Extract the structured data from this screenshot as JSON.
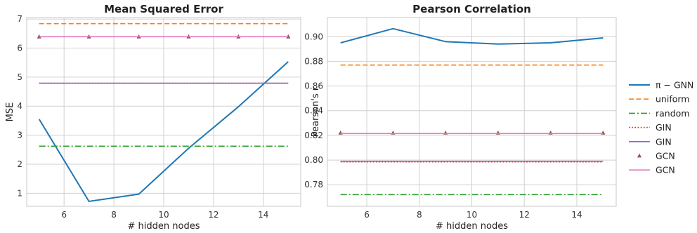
{
  "chart_data": [
    {
      "type": "line",
      "title": "Mean Squared Error",
      "xlabel": "# hidden nodes",
      "ylabel": "MSE",
      "xlim": [
        4.5,
        15.5
      ],
      "ylim": [
        0.55,
        7.05
      ],
      "xticks": [
        6,
        8,
        10,
        12,
        14
      ],
      "yticks": [
        1,
        2,
        3,
        4,
        5,
        6,
        7
      ],
      "grid": true,
      "series": [
        {
          "name": "π − GNN",
          "style": "solid",
          "color": "#1f77b4",
          "x": [
            5,
            7,
            9,
            11,
            13,
            15
          ],
          "y": [
            3.55,
            0.72,
            0.97,
            2.55,
            3.98,
            5.53
          ]
        },
        {
          "name": "uniform",
          "style": "dashed",
          "color": "#ff7f0e",
          "x": [
            5,
            15
          ],
          "y": [
            6.84,
            6.84
          ]
        },
        {
          "name": "random",
          "style": "dashdot",
          "color": "#2ca02c",
          "x": [
            5,
            15
          ],
          "y": [
            2.62,
            2.62
          ]
        },
        {
          "name": "GIN",
          "style": "dotted",
          "color": "#d62728",
          "x": [
            5,
            15
          ],
          "y": [
            4.79,
            4.79
          ]
        },
        {
          "name": "GIN",
          "style": "solid",
          "color": "#9467bd",
          "x": [
            5,
            15
          ],
          "y": [
            4.79,
            4.79
          ]
        },
        {
          "name": "GCN",
          "style": "markers",
          "color": "#8c564b",
          "x": [
            5,
            7,
            9,
            11,
            13,
            15
          ],
          "y": [
            6.39,
            6.39,
            6.39,
            6.39,
            6.39,
            6.39
          ]
        },
        {
          "name": "GCN",
          "style": "solid",
          "color": "#e377c2",
          "x": [
            5,
            15
          ],
          "y": [
            6.39,
            6.39
          ]
        }
      ]
    },
    {
      "type": "line",
      "title": "Pearson Correlation",
      "xlabel": "# hidden nodes",
      "ylabel": "Pearson's r",
      "xlim": [
        4.5,
        15.5
      ],
      "ylim": [
        0.7625,
        0.9155
      ],
      "xticks": [
        6,
        8,
        10,
        12,
        14
      ],
      "yticks": [
        0.78,
        0.8,
        0.82,
        0.84,
        0.86,
        0.88,
        0.9
      ],
      "ytick_labels": [
        "0.78",
        "0.80",
        "0.82",
        "0.84",
        "0.86",
        "0.88",
        "0.90"
      ],
      "grid": true,
      "series": [
        {
          "name": "π − GNN",
          "style": "solid",
          "color": "#1f77b4",
          "x": [
            5,
            7,
            9,
            11,
            13,
            15
          ],
          "y": [
            0.895,
            0.9065,
            0.896,
            0.894,
            0.895,
            0.899
          ]
        },
        {
          "name": "uniform",
          "style": "dashed",
          "color": "#ff7f0e",
          "x": [
            5,
            15
          ],
          "y": [
            0.877,
            0.877
          ]
        },
        {
          "name": "random",
          "style": "dashdot",
          "color": "#2ca02c",
          "x": [
            5,
            15
          ],
          "y": [
            0.772,
            0.772
          ]
        },
        {
          "name": "GIN",
          "style": "dotted",
          "color": "#d62728",
          "x": [
            5,
            15
          ],
          "y": [
            0.7985,
            0.7985
          ]
        },
        {
          "name": "GIN",
          "style": "solid",
          "color": "#9467bd",
          "x": [
            5,
            15
          ],
          "y": [
            0.799,
            0.799
          ]
        },
        {
          "name": "GCN",
          "style": "markers",
          "color": "#8c564b",
          "x": [
            5,
            7,
            9,
            11,
            13,
            15
          ],
          "y": [
            0.822,
            0.822,
            0.822,
            0.822,
            0.822,
            0.822
          ]
        },
        {
          "name": "GCN",
          "style": "solid",
          "color": "#e377c2",
          "x": [
            5,
            15
          ],
          "y": [
            0.8215,
            0.8215
          ]
        }
      ]
    }
  ],
  "legend": {
    "placement": "right",
    "entries": [
      {
        "label": "π − GNN",
        "style": "solid",
        "color": "#1f77b4"
      },
      {
        "label": "uniform",
        "style": "dashed",
        "color": "#ff7f0e"
      },
      {
        "label": "random",
        "style": "dashdot",
        "color": "#2ca02c"
      },
      {
        "label": "GIN",
        "style": "dotted",
        "color": "#d62728"
      },
      {
        "label": "GIN",
        "style": "solid",
        "color": "#9467bd"
      },
      {
        "label": "GCN",
        "style": "markers",
        "color": "#8c564b"
      },
      {
        "label": "GCN",
        "style": "solid",
        "color": "#e377c2"
      }
    ]
  }
}
